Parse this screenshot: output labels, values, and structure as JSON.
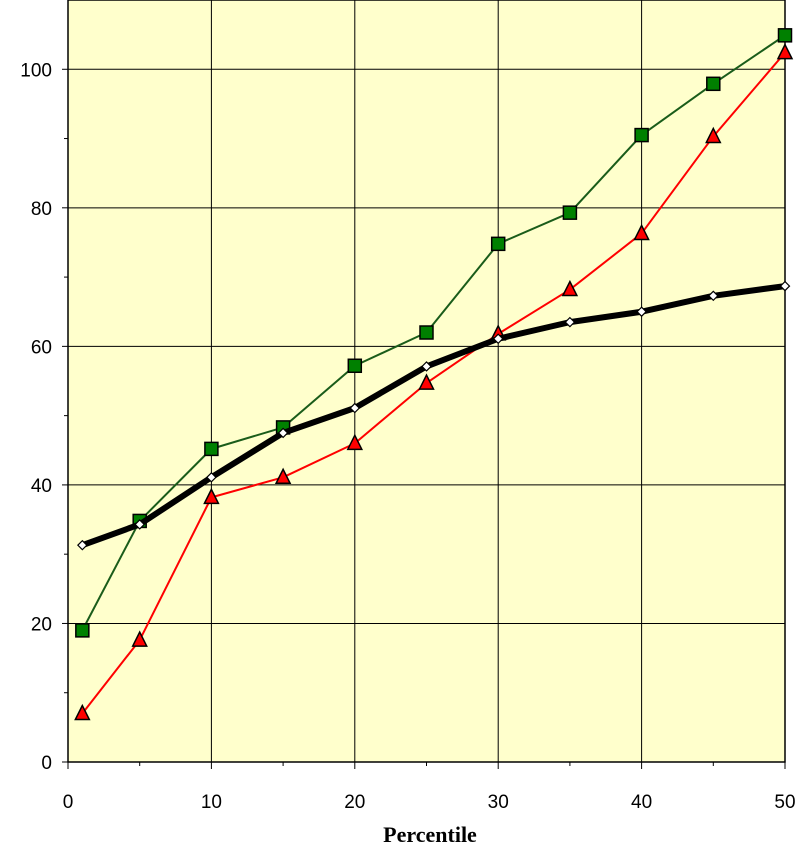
{
  "chart_data": {
    "type": "line",
    "title": "",
    "xlabel": "Percentile",
    "ylabel": "",
    "xlim": [
      0,
      50
    ],
    "ylim": [
      0,
      110
    ],
    "x_ticks": [
      0,
      10,
      20,
      30,
      40,
      50
    ],
    "y_ticks": [
      0,
      20,
      40,
      60,
      80,
      100
    ],
    "grid": true,
    "legend": "none",
    "plot_background": "#FFFFCC",
    "series": [
      {
        "marker": "square",
        "color": "#1A5C1A",
        "fill": "#008000",
        "points": [
          {
            "x": 1,
            "y": 19
          },
          {
            "x": 5,
            "y": 34.8
          },
          {
            "x": 10,
            "y": 45.2
          },
          {
            "x": 15,
            "y": 48.3
          },
          {
            "x": 20,
            "y": 57.2
          },
          {
            "x": 25,
            "y": 62
          },
          {
            "x": 30,
            "y": 74.8
          },
          {
            "x": 35,
            "y": 79.3
          },
          {
            "x": 40,
            "y": 90.5
          },
          {
            "x": 45,
            "y": 97.9
          },
          {
            "x": 50,
            "y": 104.9
          }
        ]
      },
      {
        "marker": "triangle",
        "color": "#FF0000",
        "fill": "#FF0000",
        "points": [
          {
            "x": 1,
            "y": 7
          },
          {
            "x": 5,
            "y": 17.6
          },
          {
            "x": 10,
            "y": 38.2
          },
          {
            "x": 15,
            "y": 41.1
          },
          {
            "x": 20,
            "y": 46
          },
          {
            "x": 25,
            "y": 54.7
          },
          {
            "x": 30,
            "y": 61.8
          },
          {
            "x": 35,
            "y": 68.2
          },
          {
            "x": 40,
            "y": 76.3
          },
          {
            "x": 45,
            "y": 90.3
          },
          {
            "x": 50,
            "y": 102.4
          }
        ]
      },
      {
        "marker": "diamond",
        "color": "#000000",
        "fill": "#FFFFFF",
        "points": [
          {
            "x": 1,
            "y": 31.3
          },
          {
            "x": 5,
            "y": 34.3
          },
          {
            "x": 10,
            "y": 41.1
          },
          {
            "x": 15,
            "y": 47.5
          },
          {
            "x": 20,
            "y": 51.1
          },
          {
            "x": 25,
            "y": 57.1
          },
          {
            "x": 30,
            "y": 61.1
          },
          {
            "x": 35,
            "y": 63.5
          },
          {
            "x": 40,
            "y": 65
          },
          {
            "x": 45,
            "y": 67.3
          },
          {
            "x": 50,
            "y": 68.7
          }
        ]
      }
    ]
  }
}
